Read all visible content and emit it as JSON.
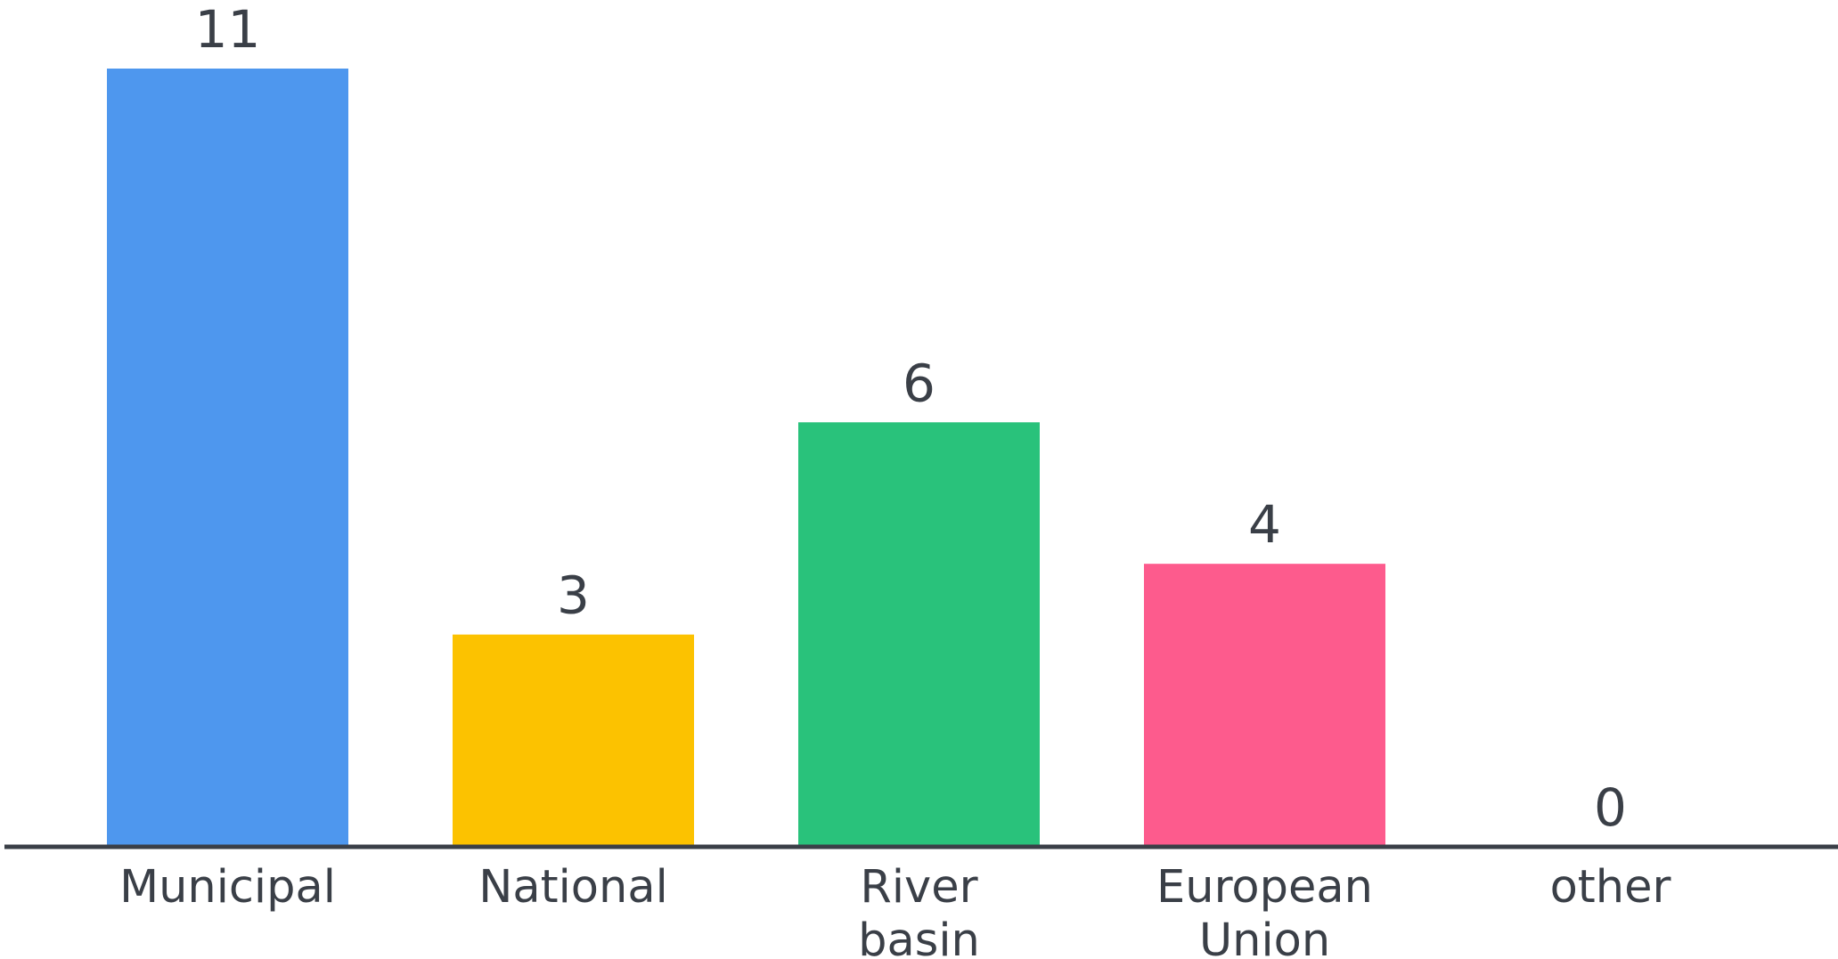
{
  "chart_data": {
    "type": "bar",
    "categories": [
      [
        "Municipal"
      ],
      [
        "National"
      ],
      [
        "River",
        "basin"
      ],
      [
        "European",
        "Union"
      ],
      [
        "other"
      ]
    ],
    "values": [
      11,
      3,
      6,
      4,
      0
    ],
    "value_labels": [
      "11",
      "3",
      "6",
      "4",
      "0"
    ],
    "colors": [
      "#4e97ee",
      "#fcc200",
      "#29c27b",
      "#fd5b8d",
      "#4e97ee"
    ],
    "axis_color": "#3a3f47",
    "title": "",
    "xlabel": "",
    "ylabel": "",
    "ylim": [
      0,
      11
    ],
    "grid": false,
    "legend": "none"
  }
}
